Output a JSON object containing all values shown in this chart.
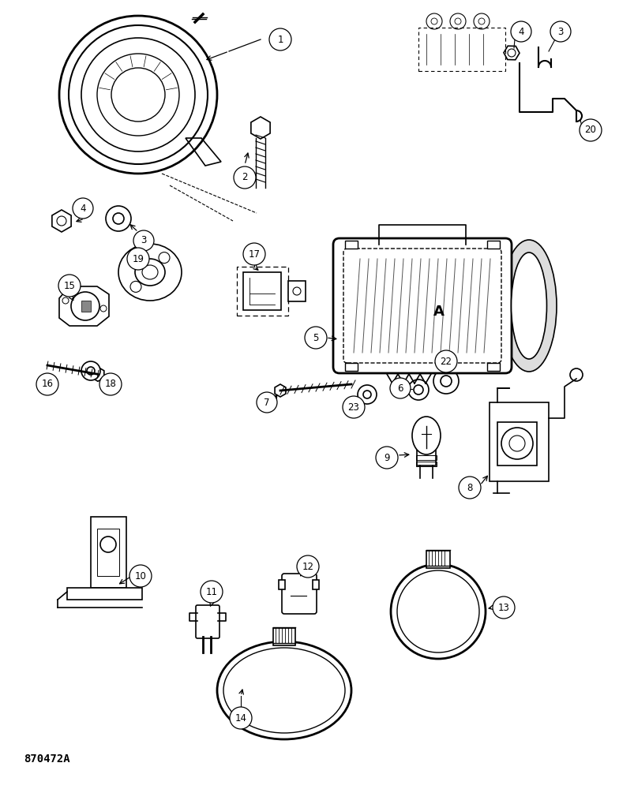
{
  "background_color": "#ffffff",
  "text_color": "#000000",
  "line_color": "#000000",
  "part_number_label": "870472A",
  "figure_width": 7.84,
  "figure_height": 10.0,
  "dpi": 100
}
